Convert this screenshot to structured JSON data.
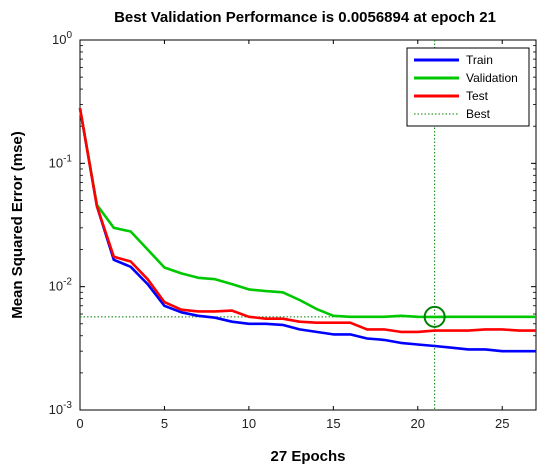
{
  "chart_data": {
    "type": "line",
    "title": "Best Validation Performance is 0.0056894 at epoch 21",
    "xlabel": "27 Epochs",
    "ylabel": "Mean Squared Error  (mse)",
    "xlim": [
      0,
      27
    ],
    "ylim": [
      0.001,
      1
    ],
    "yscale": "log",
    "xticks": [
      "0",
      "5",
      "10",
      "15",
      "20",
      "25"
    ],
    "yticks": [
      {
        "base": "10",
        "exp": "0"
      },
      {
        "base": "10",
        "exp": "-1"
      },
      {
        "base": "10",
        "exp": "-2"
      },
      {
        "base": "10",
        "exp": "-3"
      }
    ],
    "legend_position": "top-right",
    "x": [
      0,
      1,
      2,
      3,
      4,
      5,
      6,
      7,
      8,
      9,
      10,
      11,
      12,
      13,
      14,
      15,
      16,
      17,
      18,
      19,
      20,
      21,
      22,
      23,
      24,
      25,
      26,
      27
    ],
    "series": [
      {
        "name": "Train",
        "color": "#0000ff",
        "values": [
          0.28,
          0.045,
          0.0165,
          0.0145,
          0.0105,
          0.007,
          0.0062,
          0.0058,
          0.0056,
          0.0052,
          0.005,
          0.005,
          0.0049,
          0.0045,
          0.0043,
          0.0041,
          0.0041,
          0.0038,
          0.0037,
          0.0035,
          0.0034,
          0.0033,
          0.0032,
          0.0031,
          0.0031,
          0.003,
          0.003,
          0.003
        ]
      },
      {
        "name": "Validation",
        "color": "#00c800",
        "values": [
          0.28,
          0.046,
          0.03,
          0.028,
          0.02,
          0.0143,
          0.0128,
          0.0118,
          0.0115,
          0.0105,
          0.0095,
          0.0092,
          0.009,
          0.0078,
          0.0066,
          0.0058,
          0.0057,
          0.0057,
          0.0057,
          0.0058,
          0.0057,
          0.0056894,
          0.0057,
          0.0057,
          0.0057,
          0.0057,
          0.0057,
          0.0057
        ]
      },
      {
        "name": "Test",
        "color": "#ff0000",
        "values": [
          0.28,
          0.045,
          0.0175,
          0.016,
          0.0115,
          0.0075,
          0.0065,
          0.0063,
          0.0063,
          0.0064,
          0.0057,
          0.0055,
          0.0055,
          0.0052,
          0.0051,
          0.0051,
          0.0051,
          0.0045,
          0.0045,
          0.0043,
          0.0043,
          0.0044,
          0.0044,
          0.0044,
          0.0045,
          0.0045,
          0.0044,
          0.0044
        ]
      }
    ],
    "best": {
      "name": "Best",
      "epoch": 21,
      "value": 0.0056894,
      "color": "#008000"
    }
  }
}
